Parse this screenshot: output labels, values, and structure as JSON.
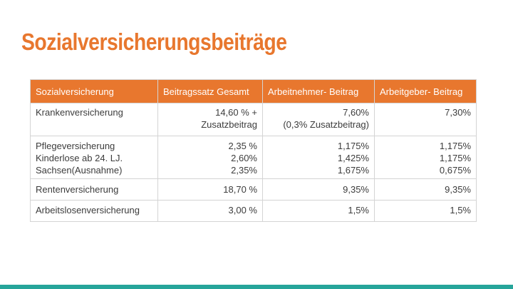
{
  "title": "Sozialversicherungsbeiträge",
  "colors": {
    "accent": "#e8772e",
    "footer_bar": "#26a59a"
  },
  "table": {
    "headers": [
      "Sozialversicherung",
      "Beitragssatz Gesamt",
      "Arbeitnehmer- Beitrag",
      "Arbeitgeber- Beitrag"
    ],
    "rows": [
      {
        "name": [
          "Krankenversicherung"
        ],
        "gesamt": [
          "14,60 % +",
          "Zusatzbeitrag"
        ],
        "arbeitnehmer": [
          "7,60%",
          "(0,3%  Zusatzbeitrag)"
        ],
        "arbeitgeber": [
          "7,30%"
        ]
      },
      {
        "name": [
          "Pflegeversicherung",
          "Kinderlose ab 24. LJ.",
          "Sachsen(Ausnahme)"
        ],
        "gesamt": [
          "2,35 %",
          "2,60%",
          "2,35%"
        ],
        "arbeitnehmer": [
          "1,175%",
          "1,425%",
          "1,675%"
        ],
        "arbeitgeber": [
          "1,175%",
          "1,175%",
          "0,675%"
        ]
      },
      {
        "name": [
          "Rentenversicherung"
        ],
        "gesamt": [
          "18,70 %"
        ],
        "arbeitnehmer": [
          "9,35%"
        ],
        "arbeitgeber": [
          "9,35%"
        ]
      },
      {
        "name": [
          "Arbeitslosenversicherung"
        ],
        "gesamt": [
          "3,00 %"
        ],
        "arbeitnehmer": [
          "1,5%"
        ],
        "arbeitgeber": [
          "1,5%"
        ]
      }
    ]
  }
}
